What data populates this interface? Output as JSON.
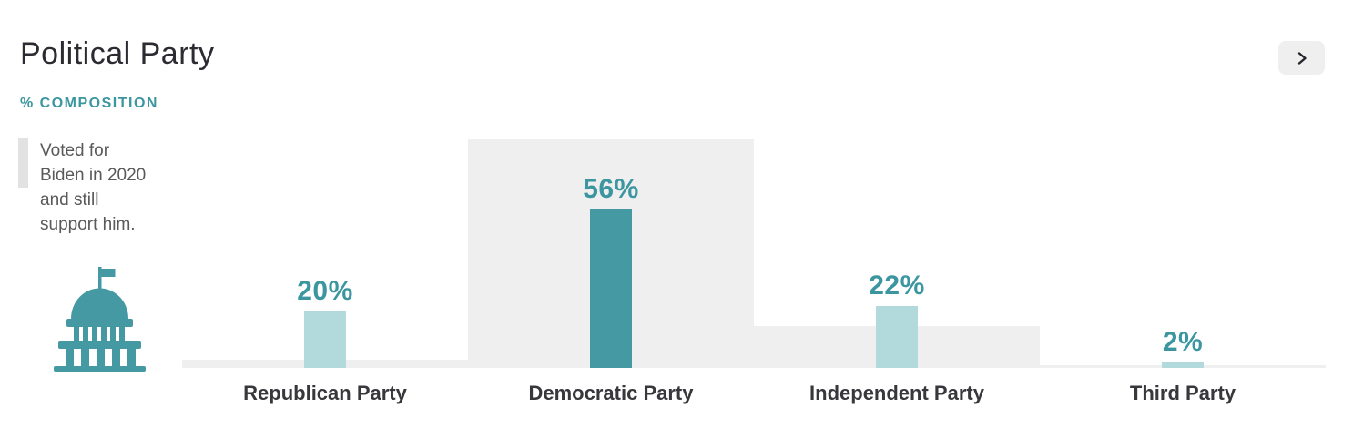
{
  "header": {
    "title": "Political Party",
    "subtitle": "% COMPOSITION"
  },
  "expand_button": {
    "icon": "chevron-right-icon"
  },
  "legend": {
    "text": "Voted for\nBiden in 2020\nand still\nsupport him.",
    "swatch_color": "#e2e2e2"
  },
  "capitol_icon": {
    "name": "capitol-building-icon",
    "color": "#4499a3"
  },
  "colors": {
    "accent_teal": "#4499a3",
    "light_teal": "#b2d9dc",
    "label_teal": "#3b96a0",
    "background_gray": "#efefef",
    "title_dark": "#2b2b31",
    "category_dark": "#38383c",
    "legend_text_gray": "#59595b"
  },
  "chart_data": {
    "type": "bar",
    "categories": [
      "Republican Party",
      "Democratic Party",
      "Independent Party",
      "Third Party"
    ],
    "series": [
      {
        "name": "Voted for Biden in 2020 and still support him.",
        "role": "background",
        "values": [
          3,
          81,
          15,
          1
        ],
        "color": "#efefef"
      },
      {
        "name": "% Composition",
        "role": "foreground",
        "values": [
          20,
          56,
          22,
          2
        ],
        "labels": [
          "20%",
          "56%",
          "22%",
          "2%"
        ],
        "bar_colors": [
          "#b2d9dc",
          "#4499a3",
          "#b2d9dc",
          "#b2d9dc"
        ]
      }
    ],
    "ylabel": "% COMPOSITION",
    "ylim": [
      0,
      100
    ],
    "grid": false,
    "legend_position": "top-left"
  }
}
